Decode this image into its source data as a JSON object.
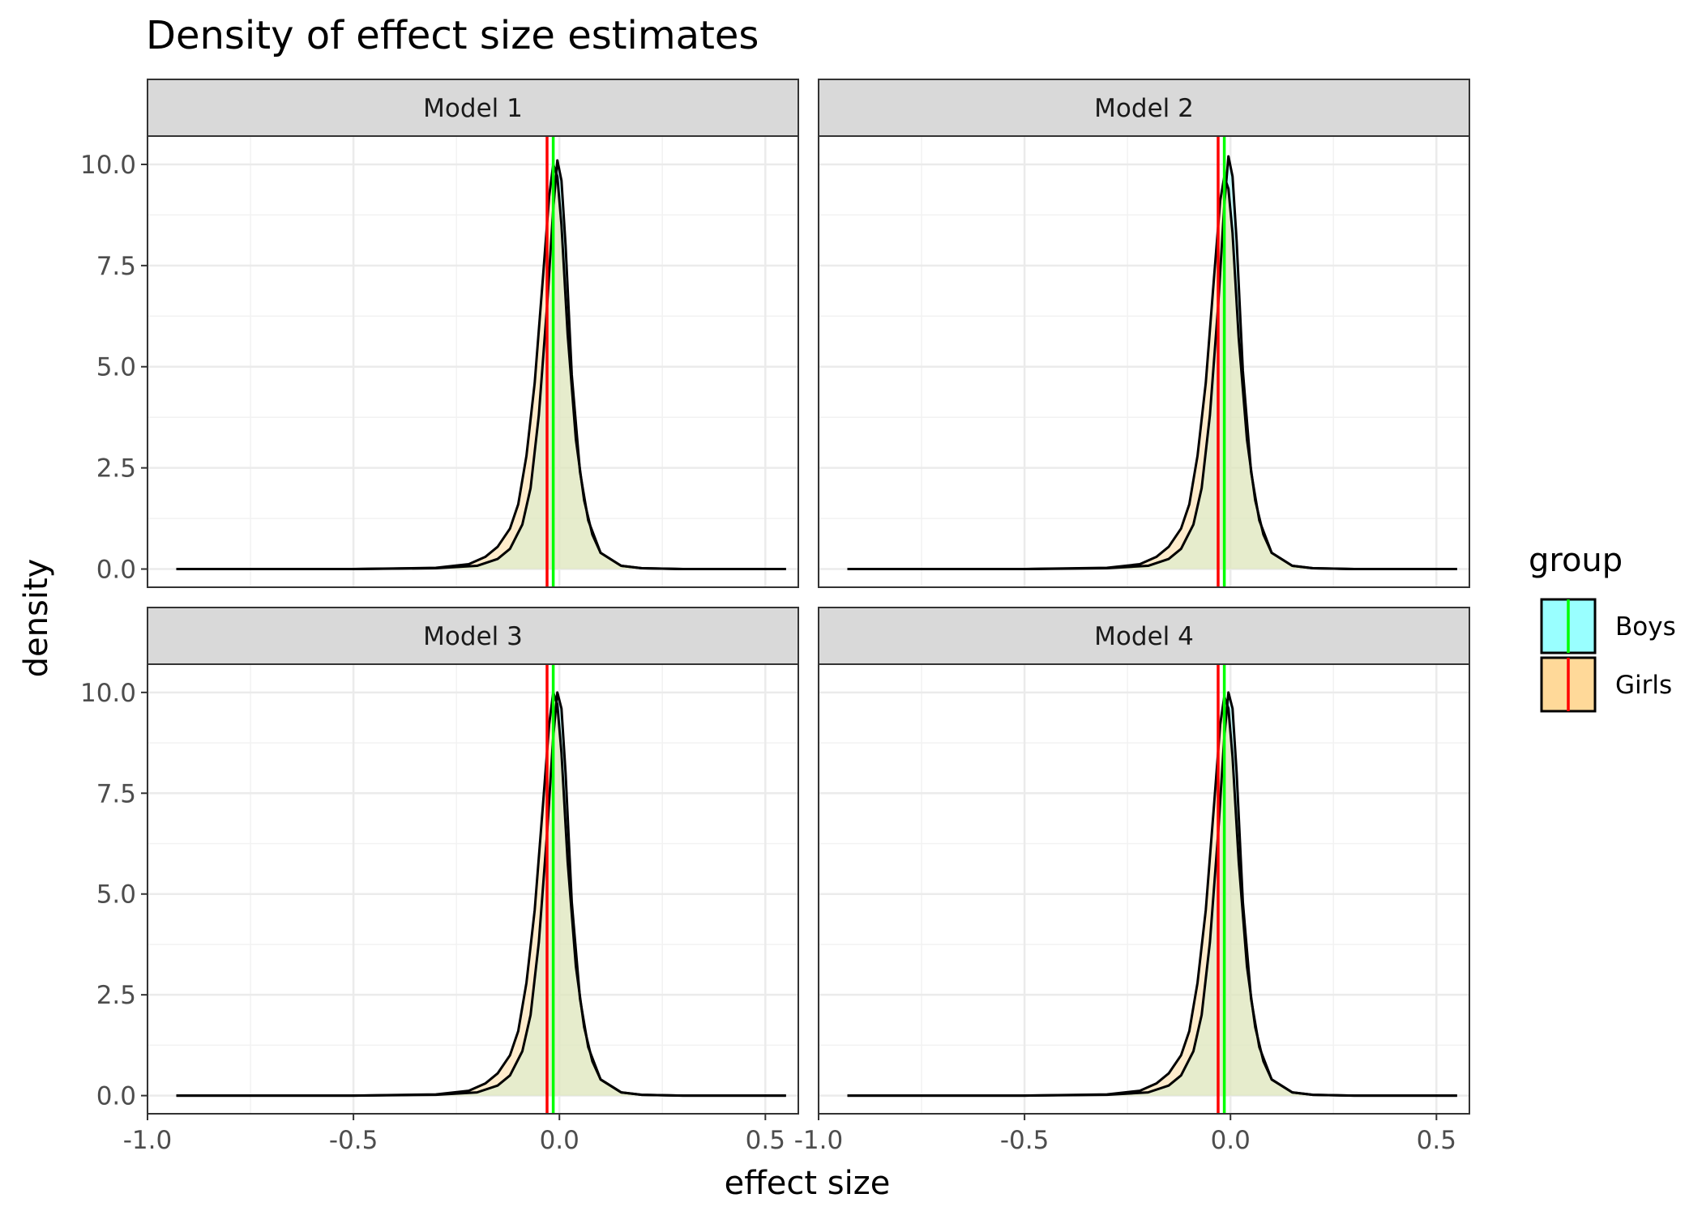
{
  "chart_data": {
    "type": "area",
    "title": "Density of effect size estimates",
    "xlabel": "effect size",
    "ylabel": "density",
    "xlim": [
      -1.0,
      0.58
    ],
    "ylim": [
      -0.45,
      10.7
    ],
    "x_ticks": [
      "-1.0",
      "-0.5",
      "0.0",
      "0.5"
    ],
    "y_ticks": [
      "0.0",
      "2.5",
      "5.0",
      "7.5",
      "10.0"
    ],
    "x_tick_values": [
      -1.0,
      -0.5,
      0.0,
      0.5
    ],
    "y_tick_values": [
      0.0,
      2.5,
      5.0,
      7.5,
      10.0
    ],
    "grid": true,
    "legend": {
      "title": "group",
      "position": "right",
      "entries": [
        {
          "label": "Boys",
          "fill": "#99ffff",
          "line": "#00ff00"
        },
        {
          "label": "Girls",
          "fill": "#ffd999",
          "line": "#ff0000"
        }
      ]
    },
    "panels": [
      {
        "label": "Model 1",
        "series": [
          {
            "name": "Boys",
            "x": [
              -0.93,
              -0.5,
              -0.3,
              -0.2,
              -0.15,
              -0.12,
              -0.09,
              -0.07,
              -0.05,
              -0.03,
              -0.015,
              -0.005,
              0.005,
              0.015,
              0.03,
              0.05,
              0.07,
              0.1,
              0.15,
              0.2,
              0.3,
              0.55
            ],
            "y": [
              0.0,
              0.0,
              0.02,
              0.08,
              0.25,
              0.5,
              1.1,
              2.0,
              3.8,
              6.5,
              8.9,
              10.1,
              9.6,
              8.0,
              4.8,
              2.4,
              1.2,
              0.4,
              0.08,
              0.02,
              0.0,
              0.0
            ],
            "mean": -0.015
          },
          {
            "name": "Girls",
            "x": [
              -0.93,
              -0.5,
              -0.3,
              -0.22,
              -0.18,
              -0.15,
              -0.12,
              -0.1,
              -0.08,
              -0.06,
              -0.04,
              -0.025,
              -0.015,
              -0.005,
              0.005,
              0.02,
              0.04,
              0.06,
              0.08,
              0.1,
              0.15,
              0.2,
              0.3,
              0.55
            ],
            "y": [
              0.0,
              0.0,
              0.03,
              0.12,
              0.3,
              0.55,
              1.0,
              1.6,
              2.8,
              4.6,
              7.2,
              9.2,
              10.0,
              9.7,
              8.5,
              5.8,
              3.2,
              1.7,
              0.85,
              0.4,
              0.08,
              0.02,
              0.0,
              0.0
            ],
            "mean": -0.03
          }
        ]
      },
      {
        "label": "Model 2",
        "series": [
          {
            "name": "Boys",
            "x": [
              -0.93,
              -0.5,
              -0.3,
              -0.2,
              -0.15,
              -0.12,
              -0.09,
              -0.07,
              -0.05,
              -0.03,
              -0.015,
              -0.005,
              0.005,
              0.015,
              0.03,
              0.05,
              0.07,
              0.1,
              0.15,
              0.2,
              0.3,
              0.55
            ],
            "y": [
              0.0,
              0.0,
              0.02,
              0.08,
              0.25,
              0.5,
              1.1,
              2.0,
              3.8,
              6.5,
              9.0,
              10.2,
              9.7,
              8.1,
              4.9,
              2.4,
              1.2,
              0.4,
              0.08,
              0.02,
              0.0,
              0.0
            ],
            "mean": -0.015
          },
          {
            "name": "Girls",
            "x": [
              -0.93,
              -0.5,
              -0.3,
              -0.22,
              -0.18,
              -0.15,
              -0.12,
              -0.1,
              -0.08,
              -0.06,
              -0.04,
              -0.025,
              -0.015,
              -0.005,
              0.005,
              0.02,
              0.04,
              0.06,
              0.08,
              0.1,
              0.15,
              0.2,
              0.3,
              0.55
            ],
            "y": [
              0.0,
              0.0,
              0.03,
              0.12,
              0.3,
              0.55,
              1.0,
              1.6,
              2.8,
              4.6,
              7.2,
              9.1,
              9.7,
              9.4,
              8.3,
              5.7,
              3.2,
              1.7,
              0.85,
              0.4,
              0.08,
              0.02,
              0.0,
              0.0
            ],
            "mean": -0.03
          }
        ]
      },
      {
        "label": "Model 3",
        "series": [
          {
            "name": "Boys",
            "x": [
              -0.93,
              -0.5,
              -0.3,
              -0.2,
              -0.15,
              -0.12,
              -0.09,
              -0.07,
              -0.05,
              -0.03,
              -0.015,
              -0.005,
              0.005,
              0.015,
              0.03,
              0.05,
              0.07,
              0.1,
              0.15,
              0.2,
              0.3,
              0.55
            ],
            "y": [
              0.0,
              0.0,
              0.02,
              0.08,
              0.25,
              0.5,
              1.1,
              2.0,
              3.8,
              6.5,
              8.9,
              10.0,
              9.6,
              8.0,
              4.8,
              2.4,
              1.2,
              0.4,
              0.08,
              0.02,
              0.0,
              0.0
            ],
            "mean": -0.015
          },
          {
            "name": "Girls",
            "x": [
              -0.93,
              -0.5,
              -0.3,
              -0.22,
              -0.18,
              -0.15,
              -0.12,
              -0.1,
              -0.08,
              -0.06,
              -0.04,
              -0.025,
              -0.015,
              -0.005,
              0.005,
              0.02,
              0.04,
              0.06,
              0.08,
              0.1,
              0.15,
              0.2,
              0.3,
              0.55
            ],
            "y": [
              0.0,
              0.0,
              0.03,
              0.12,
              0.3,
              0.55,
              1.0,
              1.6,
              2.8,
              4.6,
              7.2,
              9.2,
              10.0,
              9.7,
              8.5,
              5.8,
              3.2,
              1.7,
              0.85,
              0.4,
              0.08,
              0.02,
              0.0,
              0.0
            ],
            "mean": -0.03
          }
        ]
      },
      {
        "label": "Model 4",
        "series": [
          {
            "name": "Boys",
            "x": [
              -0.93,
              -0.5,
              -0.3,
              -0.2,
              -0.15,
              -0.12,
              -0.09,
              -0.07,
              -0.05,
              -0.03,
              -0.015,
              -0.005,
              0.005,
              0.015,
              0.03,
              0.05,
              0.07,
              0.1,
              0.15,
              0.2,
              0.3,
              0.55
            ],
            "y": [
              0.0,
              0.0,
              0.02,
              0.08,
              0.25,
              0.5,
              1.1,
              2.0,
              3.8,
              6.5,
              8.9,
              10.0,
              9.6,
              8.0,
              4.8,
              2.4,
              1.2,
              0.4,
              0.08,
              0.02,
              0.0,
              0.0
            ],
            "mean": -0.015
          },
          {
            "name": "Girls",
            "x": [
              -0.93,
              -0.5,
              -0.3,
              -0.22,
              -0.18,
              -0.15,
              -0.12,
              -0.1,
              -0.08,
              -0.06,
              -0.04,
              -0.025,
              -0.015,
              -0.005,
              0.005,
              0.02,
              0.04,
              0.06,
              0.08,
              0.1,
              0.15,
              0.2,
              0.3,
              0.55
            ],
            "y": [
              0.0,
              0.0,
              0.03,
              0.12,
              0.3,
              0.55,
              1.0,
              1.6,
              2.8,
              4.6,
              7.2,
              9.2,
              9.9,
              9.6,
              8.4,
              5.8,
              3.2,
              1.7,
              0.85,
              0.4,
              0.08,
              0.02,
              0.0,
              0.0
            ],
            "mean": -0.03
          }
        ]
      }
    ]
  },
  "colors": {
    "boys_fill": "#99ffff",
    "girls_fill": "#ffd999",
    "boys_line": "#00ff00",
    "girls_line": "#ff0000",
    "strip_bg": "#d9d9d9"
  }
}
